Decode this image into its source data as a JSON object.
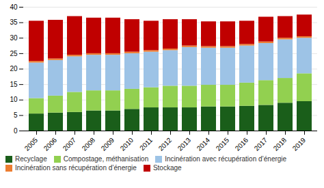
{
  "chart_data": {
    "type": "bar",
    "stacked": true,
    "categories": [
      "2005",
      "2006",
      "2007",
      "2008",
      "2009",
      "2010",
      "2011",
      "2012",
      "2013",
      "2014",
      "2015",
      "2016",
      "2017",
      "2018",
      "2019"
    ],
    "series": [
      {
        "name": "Recyclage",
        "color": "#1a5e1a",
        "values": [
          5.5,
          5.8,
          6.0,
          6.5,
          6.5,
          7.0,
          7.5,
          7.5,
          7.5,
          7.8,
          7.8,
          8.0,
          8.3,
          9.0,
          9.5
        ]
      },
      {
        "name": "Compostage, méthanisation",
        "color": "#92d050",
        "values": [
          5.0,
          5.5,
          6.5,
          6.5,
          6.5,
          6.5,
          6.5,
          7.0,
          7.0,
          7.0,
          7.0,
          7.5,
          8.0,
          8.0,
          9.0
        ]
      },
      {
        "name": "Incinération avec récupération d’énergie",
        "color": "#9dc3e6",
        "values": [
          11.5,
          11.5,
          11.5,
          11.5,
          11.5,
          11.5,
          11.5,
          11.5,
          12.5,
          12.0,
          12.0,
          12.0,
          12.0,
          12.5,
          11.5
        ]
      },
      {
        "name": "Incinération sans récupération d’énergie",
        "color": "#ed7d31",
        "values": [
          0.5,
          0.5,
          0.5,
          0.5,
          0.5,
          0.5,
          0.5,
          0.5,
          0.5,
          0.5,
          0.5,
          0.5,
          0.5,
          0.5,
          0.5
        ]
      },
      {
        "name": "Stockage",
        "color": "#c00000",
        "values": [
          13.0,
          12.5,
          12.5,
          11.5,
          11.5,
          10.5,
          9.5,
          9.5,
          8.5,
          8.0,
          8.0,
          7.5,
          8.0,
          7.0,
          7.0
        ]
      }
    ],
    "ylim": [
      0,
      40
    ],
    "yticks": [
      0,
      5,
      10,
      15,
      20,
      25,
      30,
      35,
      40
    ],
    "grid": true,
    "legend": "bottom"
  }
}
